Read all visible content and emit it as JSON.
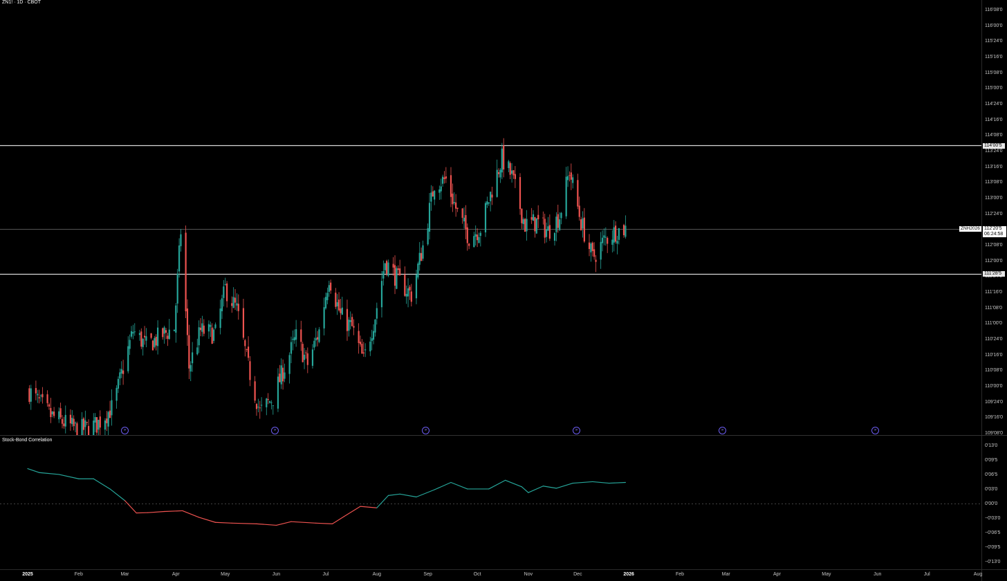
{
  "header": {
    "title": "ZN1! · 1D · CBOT"
  },
  "indicator": {
    "title": "Stock-Bond Correlation"
  },
  "price_axis": {
    "labels": [
      "116'08'0",
      "116'00'0",
      "115'24'0",
      "115'16'0",
      "115'08'0",
      "115'00'0",
      "114'24'0",
      "114'16'0",
      "114'08'0",
      "113'24'0",
      "113'16'0",
      "113'08'0",
      "113'00'0",
      "112'24'0",
      "112'16'0",
      "112'08'0",
      "112'00'0",
      "111'24'0",
      "111'16'0",
      "111'08'0",
      "111'00'0",
      "110'24'0",
      "110'16'0",
      "110'08'0",
      "110'00'0",
      "109'24'0",
      "109'16'0",
      "109'08'0"
    ]
  },
  "indicator_axis": {
    "labels": [
      "0'13'0",
      "0'09'5",
      "0'06'5",
      "0'03'0",
      "0'00'0",
      "−0'03'0",
      "−0'06'5",
      "−0'09'5",
      "−0'13'0"
    ]
  },
  "time_axis": {
    "labels": [
      "2025",
      "Feb",
      "Mar",
      "Apr",
      "May",
      "Jun",
      "Jul",
      "Aug",
      "Sep",
      "Oct",
      "Nov",
      "Dec",
      "2026",
      "Feb",
      "Mar",
      "Apr",
      "May",
      "Jun",
      "Jul",
      "Aug"
    ]
  },
  "horizontal_lines": [
    {
      "label": "114'00'5",
      "value": 114.016
    },
    {
      "label": "111'28'5",
      "value": 111.891
    }
  ],
  "last_price": {
    "symbol": "ZNH2026",
    "price": "112'20'5",
    "countdown": "06:24:58",
    "value": 112.64
  },
  "events": {
    "icon": "event-arrow-icon",
    "count": 6
  },
  "colors": {
    "up": "#26a69a",
    "down": "#ef5350",
    "event": "#6b5cf0",
    "background": "#000000"
  },
  "chart_data": [
    {
      "type": "candlestick",
      "title": "ZN1! · 1D · CBOT",
      "xlabel": "",
      "ylabel": "",
      "ylim": [
        109.25,
        116.25
      ],
      "x_range": [
        "2025-01-01",
        "2026-08-01"
      ],
      "points": [
        {
          "d": "2025-01-02",
          "v": 109.95
        },
        {
          "d": "2025-01-15",
          "v": 109.55
        },
        {
          "d": "2025-02-01",
          "v": 109.3
        },
        {
          "d": "2025-02-12",
          "v": 109.4
        },
        {
          "d": "2025-02-22",
          "v": 109.7
        },
        {
          "d": "2025-03-01",
          "v": 110.45
        },
        {
          "d": "2025-03-06",
          "v": 110.95
        },
        {
          "d": "2025-03-14",
          "v": 110.7
        },
        {
          "d": "2025-03-22",
          "v": 110.85
        },
        {
          "d": "2025-03-31",
          "v": 111.0
        },
        {
          "d": "2025-04-04",
          "v": 112.6
        },
        {
          "d": "2025-04-09",
          "v": 110.35
        },
        {
          "d": "2025-04-16",
          "v": 110.95
        },
        {
          "d": "2025-04-25",
          "v": 110.9
        },
        {
          "d": "2025-05-01",
          "v": 111.65
        },
        {
          "d": "2025-05-08",
          "v": 111.3
        },
        {
          "d": "2025-05-15",
          "v": 110.35
        },
        {
          "d": "2025-05-22",
          "v": 109.6
        },
        {
          "d": "2025-05-30",
          "v": 109.85
        },
        {
          "d": "2025-06-06",
          "v": 110.35
        },
        {
          "d": "2025-06-13",
          "v": 110.85
        },
        {
          "d": "2025-06-20",
          "v": 110.4
        },
        {
          "d": "2025-06-27",
          "v": 110.95
        },
        {
          "d": "2025-07-03",
          "v": 111.85
        },
        {
          "d": "2025-07-10",
          "v": 111.2
        },
        {
          "d": "2025-07-17",
          "v": 111.0
        },
        {
          "d": "2025-07-24",
          "v": 110.45
        },
        {
          "d": "2025-07-31",
          "v": 111.2
        },
        {
          "d": "2025-08-06",
          "v": 112.1
        },
        {
          "d": "2025-08-15",
          "v": 111.75
        },
        {
          "d": "2025-08-22",
          "v": 111.55
        },
        {
          "d": "2025-08-29",
          "v": 112.35
        },
        {
          "d": "2025-09-05",
          "v": 113.4
        },
        {
          "d": "2025-09-12",
          "v": 113.45
        },
        {
          "d": "2025-09-19",
          "v": 112.9
        },
        {
          "d": "2025-09-26",
          "v": 112.5
        },
        {
          "d": "2025-10-03",
          "v": 112.65
        },
        {
          "d": "2025-10-10",
          "v": 113.3
        },
        {
          "d": "2025-10-16",
          "v": 113.8
        },
        {
          "d": "2025-10-22",
          "v": 113.5
        },
        {
          "d": "2025-10-30",
          "v": 112.7
        },
        {
          "d": "2025-11-06",
          "v": 112.75
        },
        {
          "d": "2025-11-13",
          "v": 112.6
        },
        {
          "d": "2025-11-20",
          "v": 112.85
        },
        {
          "d": "2025-11-26",
          "v": 113.6
        },
        {
          "d": "2025-12-03",
          "v": 112.75
        },
        {
          "d": "2025-12-10",
          "v": 112.15
        },
        {
          "d": "2025-12-17",
          "v": 112.45
        },
        {
          "d": "2025-12-24",
          "v": 112.6
        },
        {
          "d": "2025-12-30",
          "v": 112.64
        }
      ]
    },
    {
      "type": "line",
      "title": "Stock-Bond Correlation",
      "xlabel": "",
      "ylabel": "",
      "ylim": [
        -0.4,
        0.4
      ],
      "points": [
        {
          "d": "2025-01-01",
          "v": 0.245
        },
        {
          "d": "2025-01-08",
          "v": 0.218
        },
        {
          "d": "2025-01-20",
          "v": 0.205
        },
        {
          "d": "2025-02-01",
          "v": 0.175
        },
        {
          "d": "2025-02-10",
          "v": 0.175
        },
        {
          "d": "2025-02-20",
          "v": 0.105
        },
        {
          "d": "2025-03-01",
          "v": 0.025
        },
        {
          "d": "2025-03-08",
          "v": -0.06
        },
        {
          "d": "2025-03-15",
          "v": -0.058
        },
        {
          "d": "2025-03-25",
          "v": -0.05
        },
        {
          "d": "2025-04-05",
          "v": -0.045
        },
        {
          "d": "2025-04-15",
          "v": -0.09
        },
        {
          "d": "2025-04-25",
          "v": -0.125
        },
        {
          "d": "2025-05-05",
          "v": -0.13
        },
        {
          "d": "2025-05-20",
          "v": -0.135
        },
        {
          "d": "2025-06-01",
          "v": -0.145
        },
        {
          "d": "2025-06-10",
          "v": -0.12
        },
        {
          "d": "2025-06-25",
          "v": -0.13
        },
        {
          "d": "2025-07-05",
          "v": -0.135
        },
        {
          "d": "2025-07-12",
          "v": -0.085
        },
        {
          "d": "2025-07-22",
          "v": -0.015
        },
        {
          "d": "2025-08-01",
          "v": -0.025
        },
        {
          "d": "2025-08-08",
          "v": 0.06
        },
        {
          "d": "2025-08-15",
          "v": 0.07
        },
        {
          "d": "2025-08-25",
          "v": 0.05
        },
        {
          "d": "2025-09-05",
          "v": 0.1
        },
        {
          "d": "2025-09-15",
          "v": 0.15
        },
        {
          "d": "2025-09-25",
          "v": 0.105
        },
        {
          "d": "2025-10-08",
          "v": 0.105
        },
        {
          "d": "2025-10-18",
          "v": 0.165
        },
        {
          "d": "2025-10-28",
          "v": 0.12
        },
        {
          "d": "2025-11-01",
          "v": 0.08
        },
        {
          "d": "2025-11-10",
          "v": 0.125
        },
        {
          "d": "2025-11-18",
          "v": 0.11
        },
        {
          "d": "2025-11-28",
          "v": 0.145
        },
        {
          "d": "2025-12-10",
          "v": 0.155
        },
        {
          "d": "2025-12-20",
          "v": 0.145
        },
        {
          "d": "2025-12-30",
          "v": 0.15
        }
      ]
    }
  ]
}
